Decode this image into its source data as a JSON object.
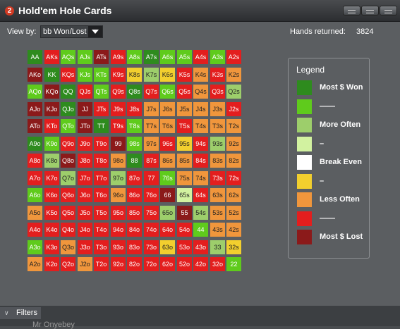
{
  "window": {
    "title": "Hold'em Hole Cards",
    "icon": "app-logo-icon",
    "icon_text": "2"
  },
  "toolbar": {
    "view_by_label": "View by:",
    "view_by_value": "bb Won/Lost",
    "hands_label": "Hands returned:",
    "hands_value": "3824"
  },
  "colors": {
    "D": "#8b1a1a",
    "R": "#e31e1e",
    "O": "#f0963c",
    "Y": "#f2cf2e",
    "W": "#ffffff",
    "P": "#d2f2a0",
    "L": "#9dce6b",
    "G": "#5fcb1c",
    "K": "#2e8b1e"
  },
  "grid": [
    [
      "AA:K",
      "AKs:R",
      "AQs:G",
      "AJs:G",
      "ATs:D",
      "A9s:R",
      "A8s:G",
      "A7s:K",
      "A6s:G",
      "A5s:G",
      "A4s:R",
      "A3s:G",
      "A2s:R"
    ],
    [
      "AKo:D",
      "KK:K",
      "KQs:R",
      "KJs:G",
      "KTs:G",
      "K9s:R",
      "K8s:Y",
      "K7s:L",
      "K6s:Y",
      "K5s:R",
      "K4s:O",
      "K3s:R",
      "K2s:O"
    ],
    [
      "AQo:G",
      "KQo:D",
      "QQ:K",
      "QJs:R",
      "QTs:G",
      "Q9s:R",
      "Q8s:K",
      "Q7s:R",
      "Q6s:G",
      "Q5s:R",
      "Q4s:O",
      "Q3s:R",
      "Q2s:L"
    ],
    [
      "AJo:D",
      "KJo:D",
      "QJo:K",
      "JJ:D",
      "JTs:R",
      "J9s:R",
      "J8s:R",
      "J7s:O",
      "J6s:O",
      "J5s:O",
      "J4s:O",
      "J3s:O",
      "J2s:R"
    ],
    [
      "ATo:D",
      "KTo:R",
      "QTo:G",
      "JTo:D",
      "TT:K",
      "T9s:R",
      "T8s:G",
      "T7s:O",
      "T6s:O",
      "T5s:R",
      "T4s:O",
      "T3s:O",
      "T2s:O"
    ],
    [
      "A9o:K",
      "K9o:G",
      "Q9o:R",
      "J9o:R",
      "T9o:R",
      "99:D",
      "98s:G",
      "97s:O",
      "96s:R",
      "95s:Y",
      "94s:R",
      "93s:L",
      "92s:O"
    ],
    [
      "A8o:R",
      "K8o:L",
      "Q8o:D",
      "J8o:R",
      "T8o:R",
      "98o:O",
      "88:K",
      "87s:R",
      "86s:O",
      "85s:O",
      "84s:R",
      "83s:O",
      "82s:O"
    ],
    [
      "A7o:R",
      "K7o:R",
      "Q7o:L",
      "J7o:R",
      "T7o:R",
      "97o:L",
      "87o:R",
      "77:R",
      "76s:G",
      "75s:O",
      "74s:O",
      "73s:R",
      "72s:R"
    ],
    [
      "A6o:G",
      "K6o:R",
      "Q6o:R",
      "J6o:R",
      "T6o:R",
      "96o:O",
      "86o:R",
      "76o:R",
      "66:D",
      "65s:P",
      "64s:R",
      "63s:O",
      "62s:O"
    ],
    [
      "A5o:O",
      "K5o:R",
      "Q5o:R",
      "J5o:R",
      "T5o:R",
      "95o:R",
      "85o:R",
      "75o:R",
      "65o:L",
      "55:D",
      "54s:L",
      "53s:O",
      "52s:O"
    ],
    [
      "A4o:R",
      "K4o:R",
      "Q4o:R",
      "J4o:R",
      "T4o:R",
      "94o:R",
      "84o:R",
      "74o:R",
      "64o:R",
      "54o:R",
      "44:G",
      "43s:O",
      "42s:O"
    ],
    [
      "A3o:G",
      "K3o:R",
      "Q3o:O",
      "J3o:R",
      "T3o:R",
      "93o:R",
      "83o:R",
      "73o:R",
      "63o:Y",
      "53o:R",
      "43o:R",
      "33:L",
      "32s:Y"
    ],
    [
      "A2o:O",
      "K2o:R",
      "Q2o:R",
      "J2o:O",
      "T2o:R",
      "92o:R",
      "82o:R",
      "72o:R",
      "62o:R",
      "52o:R",
      "42o:R",
      "32o:R",
      "22:G"
    ]
  ],
  "legend": {
    "title": "Legend",
    "items": [
      {
        "color": "#2e8b1e",
        "label": "Most $ Won"
      },
      {
        "color": "#5fcb1c",
        "label": "——"
      },
      {
        "color": "#9dce6b",
        "label": "More Often"
      },
      {
        "color": "#d2f2a0",
        "label": "–"
      },
      {
        "color": "#ffffff",
        "label": "Break Even"
      },
      {
        "color": "#f2cf2e",
        "label": "–"
      },
      {
        "color": "#f0963c",
        "label": "Less Often"
      },
      {
        "color": "#e31e1e",
        "label": "——"
      },
      {
        "color": "#8b1a1a",
        "label": "Most $ Lost"
      }
    ]
  },
  "footer": {
    "filters_label": "Filters",
    "peek_text": "Mr Onyebey"
  }
}
